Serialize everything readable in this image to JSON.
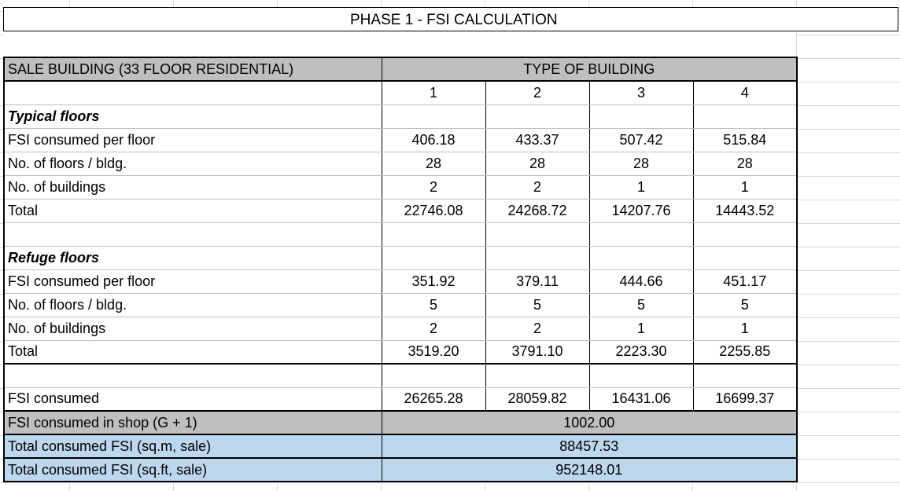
{
  "title": "PHASE 1 - FSI CALCULATION",
  "header": {
    "label": "SALE BUILDING (33 FLOOR RESIDENTIAL)",
    "group_label": "TYPE OF BUILDING",
    "types": [
      "1",
      "2",
      "3",
      "4"
    ]
  },
  "typical": {
    "heading": "Typical floors",
    "rows": [
      {
        "label": "FSI consumed per floor",
        "values": [
          "406.18",
          "433.37",
          "507.42",
          "515.84"
        ]
      },
      {
        "label": "No. of floors / bldg.",
        "values": [
          "28",
          "28",
          "28",
          "28"
        ]
      },
      {
        "label": "No. of buildings",
        "values": [
          "2",
          "2",
          "1",
          "1"
        ]
      },
      {
        "label": "Total",
        "values": [
          "22746.08",
          "24268.72",
          "14207.76",
          "14443.52"
        ]
      }
    ]
  },
  "refuge": {
    "heading": "Refuge floors",
    "rows": [
      {
        "label": "FSI consumed per floor",
        "values": [
          "351.92",
          "379.11",
          "444.66",
          "451.17"
        ]
      },
      {
        "label": "No. of floors / bldg.",
        "values": [
          "5",
          "5",
          "5",
          "5"
        ]
      },
      {
        "label": "No. of buildings",
        "values": [
          "2",
          "2",
          "1",
          "1"
        ]
      },
      {
        "label": "Total",
        "values": [
          "3519.20",
          "3791.10",
          "2223.30",
          "2255.85"
        ]
      }
    ]
  },
  "summary": {
    "fsi_consumed": {
      "label": "FSI consumed",
      "values": [
        "26265.28",
        "28059.82",
        "16431.06",
        "16699.37"
      ]
    },
    "shop": {
      "label": "FSI consumed in shop (G + 1)",
      "value": "1002.00"
    },
    "total_sqm": {
      "label": "Total consumed FSI (sq.m, sale)",
      "value": "88457.53"
    },
    "total_sqft": {
      "label": "Total consumed FSI (sq.ft, sale)",
      "value": "952148.01"
    }
  },
  "colors": {
    "header_gray": "#bfbfbf",
    "total_blue": "#bdd7ee"
  }
}
